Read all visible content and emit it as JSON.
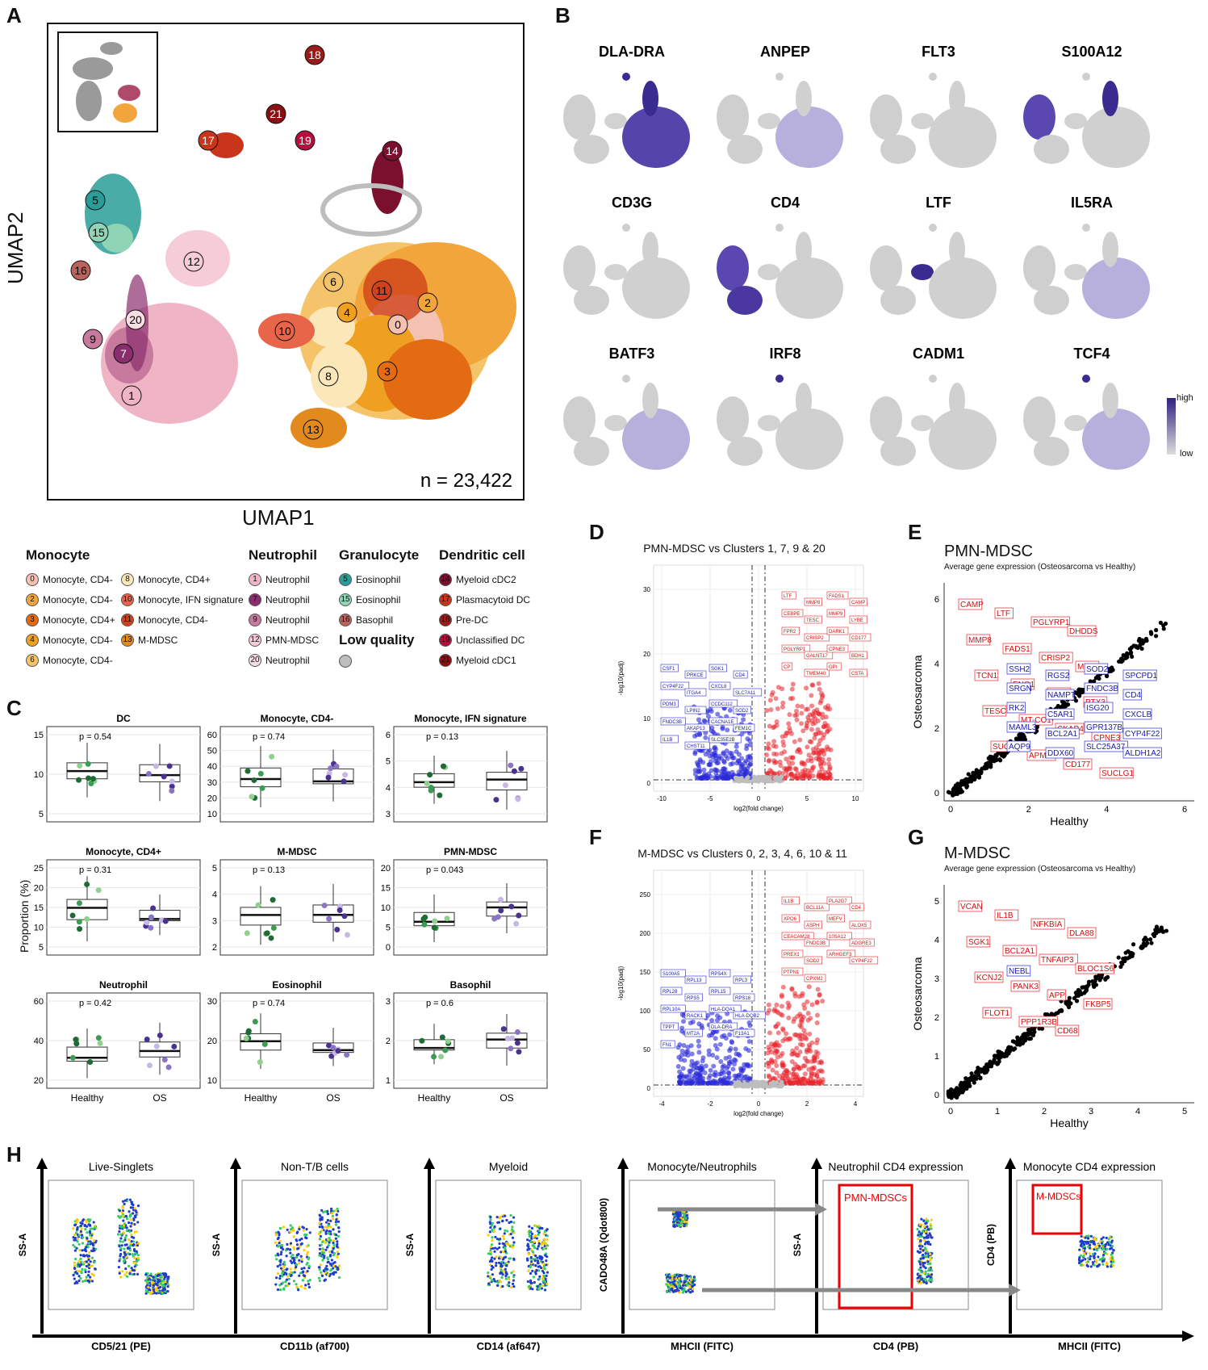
{
  "panels": {
    "A": "A",
    "B": "B",
    "C": "C",
    "D": "D",
    "E": "E",
    "F": "F",
    "G": "G",
    "H": "H"
  },
  "umap": {
    "xlabel": "UMAP1",
    "ylabel": "UMAP2",
    "n_label": "n = 23,422",
    "clusters": [
      "18",
      "17",
      "21",
      "19",
      "14",
      "5",
      "15",
      "16",
      "12",
      "6",
      "11",
      "2",
      "4",
      "0",
      "10",
      "9",
      "20",
      "7",
      "8",
      "3",
      "1",
      "13"
    ]
  },
  "genes": {
    "row1": [
      "DLA-DRA",
      "ANPEP",
      "FLT3",
      "S100A12"
    ],
    "row2": [
      "CD3G",
      "CD4",
      "LTF",
      "IL5RA"
    ],
    "row3": [
      "BATF3",
      "IRF8",
      "CADM1",
      "TCF4"
    ],
    "scale_high": "high",
    "scale_low": "low"
  },
  "legend": {
    "monocyte_head": "Monocyte",
    "neutrophil_head": "Neutrophil",
    "granulocyte_head": "Granulocyte",
    "dc_head": "Dendritic cell",
    "lowq_head": "Low quality",
    "monocyte_col1": [
      {
        "num": "0",
        "label": "Monocyte, CD4-",
        "color": "#f4c1b2"
      },
      {
        "num": "2",
        "label": "Monocyte, CD4-",
        "color": "#f2a53a"
      },
      {
        "num": "3",
        "label": "Monocyte, CD4+",
        "color": "#e36b12"
      },
      {
        "num": "4",
        "label": "Monocyte, CD4-",
        "color": "#f0a020"
      },
      {
        "num": "6",
        "label": "Monocyte, CD4-",
        "color": "#f5c46a"
      }
    ],
    "monocyte_col2": [
      {
        "num": "8",
        "label": "Monocyte, CD4+",
        "color": "#fbe7b8"
      },
      {
        "num": "10",
        "label": "Monocyte, IFN signature",
        "color": "#e8654a"
      },
      {
        "num": "11",
        "label": "Monocyte, CD4-",
        "color": "#d0421a"
      },
      {
        "num": "13",
        "label": "M-MDSC",
        "color": "#e38a1e"
      }
    ],
    "neutrophil": [
      {
        "num": "1",
        "label": "Neutrophil",
        "color": "#f0b5c4"
      },
      {
        "num": "7",
        "label": "Neutrophil",
        "color": "#8a2d6e"
      },
      {
        "num": "9",
        "label": "Neutrophil",
        "color": "#c77a9e"
      },
      {
        "num": "12",
        "label": "PMN-MDSC",
        "color": "#f6ccd6"
      },
      {
        "num": "20",
        "label": "Neutrophil",
        "color": "#f8dde3"
      }
    ],
    "granulocyte": [
      {
        "num": "5",
        "label": "Eosinophil",
        "color": "#2a9d98"
      },
      {
        "num": "15",
        "label": "Eosinophil",
        "color": "#8fd5b5"
      },
      {
        "num": "16",
        "label": "Basophil",
        "color": "#b8645c"
      }
    ],
    "dc": [
      {
        "num": "14",
        "label": "Myeloid cDC2",
        "color": "#7a0f2e"
      },
      {
        "num": "17",
        "label": "Plasmacytoid DC",
        "color": "#c9351a"
      },
      {
        "num": "18",
        "label": "Pre-DC",
        "color": "#9a1a1a"
      },
      {
        "num": "19",
        "label": "Unclassified DC",
        "color": "#b5103c"
      },
      {
        "num": "21",
        "label": "Myeloid cDC1",
        "color": "#8a1010"
      }
    ]
  },
  "boxplots": {
    "ylabel": "Proportion (%)",
    "groups": [
      "Healthy",
      "OS"
    ],
    "plots": [
      {
        "title": "DC",
        "p": "p = 0.54",
        "yticks": [
          "5",
          "10",
          "15"
        ]
      },
      {
        "title": "Monocyte, CD4-",
        "p": "p = 0.74",
        "yticks": [
          "10",
          "20",
          "30",
          "40",
          "50",
          "60"
        ]
      },
      {
        "title": "Monocyte, IFN signature",
        "p": "p = 0.13",
        "yticks": [
          "3",
          "4",
          "5",
          "6"
        ]
      },
      {
        "title": "Monocyte, CD4+",
        "p": "p = 0.31",
        "yticks": [
          "5",
          "10",
          "15",
          "20",
          "25"
        ]
      },
      {
        "title": "M-MDSC",
        "p": "p = 0.13",
        "yticks": [
          "2",
          "3",
          "4",
          "5"
        ]
      },
      {
        "title": "PMN-MDSC",
        "p": "p = 0.043",
        "yticks": [
          "0",
          "5",
          "10",
          "15",
          "20"
        ]
      },
      {
        "title": "Neutrophil",
        "p": "p = 0.42",
        "yticks": [
          "20",
          "40",
          "60"
        ]
      },
      {
        "title": "Eosinophil",
        "p": "p = 0.74",
        "yticks": [
          "10",
          "20",
          "30"
        ]
      },
      {
        "title": "Basophil",
        "p": "p = 0.6",
        "yticks": [
          "1",
          "2",
          "3"
        ]
      }
    ]
  },
  "volcano_d": {
    "title": "PMN-MDSC vs Clusters 1, 7, 9 & 20",
    "xlabel": "log2(fold change)",
    "ylabel": "-log10(padj)",
    "xticks": [
      "-10",
      "-5",
      "0",
      "5",
      "10"
    ],
    "yticks": [
      "0",
      "10",
      "20",
      "30"
    ],
    "up": [
      "LTF",
      "MMP8",
      "FADS1",
      "CAMP",
      "CEBPE",
      "TESC",
      "MMP9",
      "LYBE",
      "FPR2",
      "CRISP2",
      "DARK1",
      "CD177",
      "PGLYRP1",
      "GALNT17",
      "CPNE3",
      "BDH1",
      "CP",
      "TMEM40",
      "GPI",
      "CSTA"
    ],
    "down": [
      "CSF1",
      "PRKCE",
      "SGK1",
      "CD4",
      "CYP4F22",
      "ITGA4",
      "CXCL8",
      "SLC7A11",
      "PDM3",
      "LPIN2",
      "CCDC112",
      "SOD2",
      "FNDC3B",
      "AKAP13",
      "CACNA1E",
      "FEM1C",
      "IL1B",
      "CHST11",
      "SLC35E2B"
    ]
  },
  "volcano_f": {
    "title": "M-MDSC vs Clusters 0, 2, 3, 4, 6, 10 & 11",
    "xlabel": "log2(fold change)",
    "ylabel": "-log10(padj)",
    "xticks": [
      "-4",
      "-2",
      "0",
      "2",
      "4"
    ],
    "yticks": [
      "0",
      "50",
      "100",
      "150",
      "200",
      "250"
    ],
    "up": [
      "IL1B",
      "BCL11A",
      "PLA2G7",
      "CD4",
      "XPO6",
      "ASPH",
      "MEFV",
      "ALOX5",
      "CEACAM28",
      "FNDC3B",
      "10SA12",
      "ADGRE3",
      "PREX1",
      "SOD2",
      "ARHGEF3",
      "CYP4F22",
      "PTPN1",
      "CPXM2"
    ],
    "down": [
      "S100A5",
      "RPL13",
      "RPS4X",
      "RPL3",
      "RPL28",
      "RPS5",
      "RPL15",
      "RPS18",
      "RPL10A",
      "RACK1",
      "HLA-DQA1",
      "HLA-DQB2",
      "TPPT",
      "MT2A",
      "DLA-DRA",
      "F13A1",
      "FN1"
    ]
  },
  "scatter_e": {
    "title": "PMN-MDSC",
    "subtitle": "Average gene expression (Osteosarcoma vs Healthy)",
    "xlabel": "Healthy",
    "ylabel": "Osteosarcoma",
    "xticks": [
      "0",
      "2",
      "4",
      "6"
    ],
    "yticks": [
      "0",
      "2",
      "4",
      "6"
    ],
    "red_labels": [
      "CAMP",
      "LTF",
      "PGLYRP1",
      "DHDDS",
      "MMP8",
      "FADS1",
      "CRISP2",
      "MMP9",
      "TCN1",
      "ENO1",
      "PSD3",
      "PTX3",
      "TESC",
      "MT-CO1",
      "CKAP4",
      "CPNE3",
      "SUCLG2",
      "APMAP",
      "CD177",
      "SUCLG1"
    ],
    "blue_labels": [
      "SSH2",
      "RGS2",
      "SOD2",
      "SPCPD1",
      "SRGN",
      "NAMPT",
      "FNDC3B",
      "CD4",
      "RK2",
      "C5AR1",
      "ISG20",
      "CXCLB",
      "MAML3",
      "BCL2A1",
      "GPR137B",
      "CYP4F22",
      "AQP9",
      "DDX60",
      "SLC25A37",
      "ALDH1A2"
    ]
  },
  "scatter_g": {
    "title": "M-MDSC",
    "subtitle": "Average gene expression (Osteosarcoma vs Healthy)",
    "xlabel": "Healthy",
    "ylabel": "Osteosarcoma",
    "xticks": [
      "0",
      "1",
      "2",
      "3",
      "4",
      "5"
    ],
    "yticks": [
      "0",
      "1",
      "2",
      "3",
      "4",
      "5"
    ],
    "red_labels": [
      "VCAN",
      "IL1B",
      "NFKBIA",
      "DLA88",
      "SGK1",
      "BCL2A1",
      "TNFAIP3",
      "BLOC1S6",
      "KCNJ2",
      "PANK3",
      "APP",
      "FKBP5",
      "FLOT1",
      "PPP1R3B",
      "CD68"
    ],
    "blue_labels": [
      "NEBL"
    ]
  },
  "flow": {
    "plots": [
      {
        "title": "Live-Singlets",
        "ylabel": "SS-A",
        "xlabel": "CD5/21 (PE)"
      },
      {
        "title": "Non-T/B cells",
        "ylabel": "SS-A",
        "xlabel": "CD11b (af700)"
      },
      {
        "title": "Myeloid",
        "ylabel": "SS-A",
        "xlabel": "CD14 (af647)"
      },
      {
        "title": "Monocyte/Neutrophils",
        "ylabel": "CADO48A (Qdot800)",
        "xlabel": "MHCII (FITC)"
      },
      {
        "title": "Neutrophil CD4 expression",
        "ylabel": "SS-A",
        "xlabel": "CD4 (PB)"
      },
      {
        "title": "Monocyte CD4 expression",
        "ylabel": "CD4 (PB)",
        "xlabel": "MHCII (FITC)"
      }
    ],
    "gate_pmn": "PMN-MDSCs",
    "gate_m": "M-MDSCs"
  }
}
